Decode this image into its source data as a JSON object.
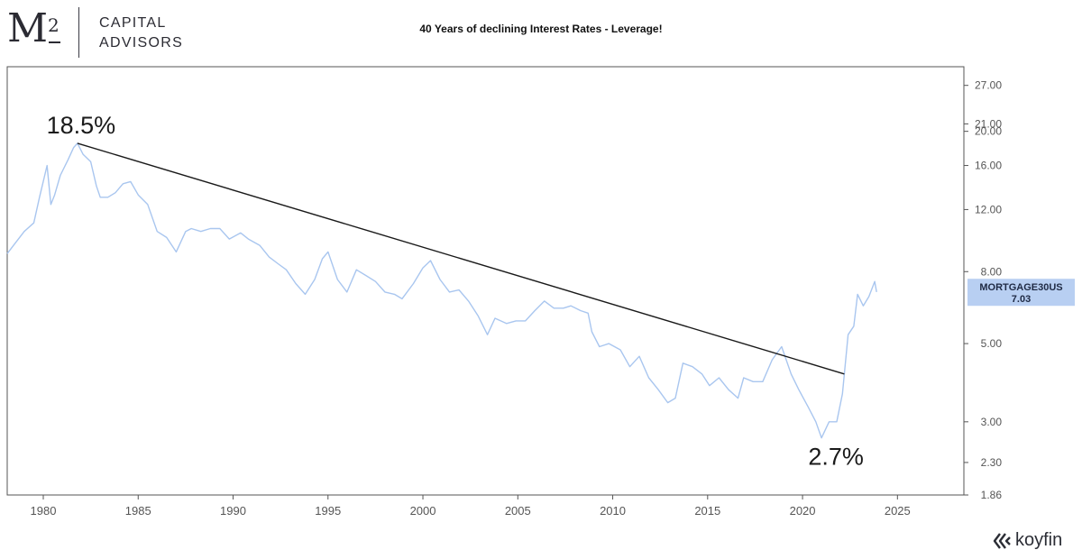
{
  "logo": {
    "mark": "M",
    "superscript": "2",
    "line1": "CAPITAL",
    "line2": "ADVISORS"
  },
  "brand": {
    "name": "koyfin",
    "icon": "koyfin-logo-icon"
  },
  "colors": {
    "series": "#a9c6ef",
    "trendline": "#1a1a1a",
    "tag_bg": "#b8cff2",
    "axis": "#555555"
  },
  "chart_data": {
    "type": "line",
    "title": "40 Years of declining Interest Rates - Leverage!",
    "xlabel": "",
    "ylabel": "",
    "y_scale": "log",
    "y_axis_side": "right",
    "xlim": [
      1978.1,
      2028.5
    ],
    "ylim": [
      1.86,
      30.5
    ],
    "x_ticks": [
      "1980",
      "1985",
      "1990",
      "1995",
      "2000",
      "2005",
      "2010",
      "2015",
      "2020",
      "2025"
    ],
    "y_ticks": [
      "27.00",
      "21.00",
      "20.00",
      "16.00",
      "12.00",
      "8.00",
      "5.00",
      "3.00",
      "2.30",
      "1.86"
    ],
    "series": [
      {
        "name": "MORTGAGE30US",
        "last_value": "7.03",
        "x": [
          1978.1,
          1978.5,
          1979.0,
          1979.5,
          1979.8,
          1980.2,
          1980.4,
          1980.6,
          1980.9,
          1981.3,
          1981.6,
          1981.8,
          1982.1,
          1982.5,
          1982.8,
          1983.0,
          1983.4,
          1983.8,
          1984.2,
          1984.6,
          1985.0,
          1985.5,
          1986.0,
          1986.5,
          1987.0,
          1987.5,
          1987.8,
          1988.3,
          1988.8,
          1989.3,
          1989.8,
          1990.4,
          1990.8,
          1991.4,
          1991.9,
          1992.4,
          1992.8,
          1993.3,
          1993.8,
          1994.3,
          1994.7,
          1995.0,
          1995.5,
          1996.0,
          1996.5,
          1997.0,
          1997.5,
          1998.0,
          1998.5,
          1998.9,
          1999.5,
          2000.0,
          2000.4,
          2000.9,
          2001.4,
          2001.9,
          2002.4,
          2002.9,
          2003.4,
          2003.8,
          2004.4,
          2004.9,
          2005.4,
          2005.9,
          2006.4,
          2006.9,
          2007.4,
          2007.8,
          2008.3,
          2008.7,
          2008.9,
          2009.3,
          2009.8,
          2010.4,
          2010.9,
          2011.4,
          2011.9,
          2012.4,
          2012.9,
          2013.3,
          2013.7,
          2014.2,
          2014.7,
          2015.1,
          2015.6,
          2016.1,
          2016.6,
          2016.9,
          2017.4,
          2017.9,
          2018.4,
          2018.9,
          2019.4,
          2019.8,
          2020.3,
          2020.7,
          2021.0,
          2021.4,
          2021.8,
          2022.1,
          2022.4,
          2022.7,
          2022.9,
          2023.2,
          2023.5,
          2023.8,
          2023.9
        ],
        "values": [
          9.0,
          9.6,
          10.4,
          11.0,
          13.0,
          16.0,
          12.4,
          13.2,
          15.0,
          16.6,
          18.0,
          18.5,
          17.2,
          16.4,
          14.0,
          13.0,
          13.0,
          13.4,
          14.2,
          14.4,
          13.2,
          12.4,
          10.4,
          10.0,
          9.1,
          10.4,
          10.6,
          10.4,
          10.6,
          10.6,
          9.9,
          10.3,
          9.9,
          9.5,
          8.8,
          8.4,
          8.1,
          7.4,
          6.9,
          7.6,
          8.7,
          9.1,
          7.6,
          7.0,
          8.1,
          7.8,
          7.5,
          7.0,
          6.9,
          6.7,
          7.4,
          8.2,
          8.6,
          7.6,
          7.0,
          7.1,
          6.6,
          6.0,
          5.3,
          5.9,
          5.7,
          5.8,
          5.8,
          6.2,
          6.6,
          6.3,
          6.3,
          6.4,
          6.2,
          6.1,
          5.4,
          4.9,
          5.0,
          4.8,
          4.3,
          4.6,
          4.0,
          3.7,
          3.4,
          3.5,
          4.4,
          4.3,
          4.1,
          3.8,
          4.0,
          3.7,
          3.5,
          4.0,
          3.9,
          3.9,
          4.5,
          4.9,
          4.1,
          3.7,
          3.3,
          3.0,
          2.7,
          3.0,
          3.0,
          3.6,
          5.3,
          5.6,
          6.9,
          6.4,
          6.8,
          7.5,
          7.0
        ]
      }
    ],
    "trendline": {
      "x": [
        1981.8,
        2022.2
      ],
      "y": [
        18.5,
        4.1
      ]
    },
    "annotations": [
      {
        "text": "18.5%",
        "x": 1981.8,
        "y": 18.5
      },
      {
        "text": "2.7%",
        "x": 2021.0,
        "y": 2.7
      }
    ],
    "grid": false,
    "legend": "none"
  }
}
